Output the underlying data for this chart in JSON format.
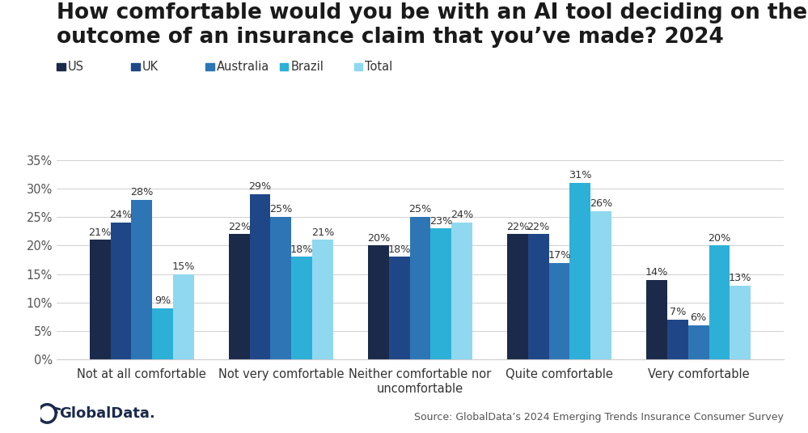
{
  "title_line1": "How comfortable would you be with an AI tool deciding on the",
  "title_line2": "outcome of an insurance claim that you’ve made? 2024",
  "categories": [
    "Not at all comfortable",
    "Not very comfortable",
    "Neither comfortable nor\nuncomfortable",
    "Quite comfortable",
    "Very comfortable"
  ],
  "series": {
    "US": [
      21,
      22,
      20,
      22,
      14
    ],
    "UK": [
      24,
      29,
      18,
      22,
      7
    ],
    "Australia": [
      28,
      25,
      25,
      17,
      6
    ],
    "Brazil": [
      9,
      18,
      23,
      31,
      20
    ],
    "Total": [
      15,
      21,
      24,
      26,
      13
    ]
  },
  "colors": {
    "US": "#1b2a4a",
    "UK": "#1f4788",
    "Australia": "#2e75b6",
    "Brazil": "#2db0d8",
    "Total": "#8fd8f0"
  },
  "legend_order": [
    "US",
    "UK",
    "Australia",
    "Brazil",
    "Total"
  ],
  "ylim": [
    0,
    35
  ],
  "yticks": [
    0,
    5,
    10,
    15,
    20,
    25,
    30,
    35
  ],
  "source_text": "Source: GlobalData’s 2024 Emerging Trends Insurance Consumer Survey",
  "background_color": "#ffffff",
  "title_fontsize": 19,
  "legend_fontsize": 10.5,
  "tick_fontsize": 10.5,
  "bar_label_fontsize": 9.2
}
